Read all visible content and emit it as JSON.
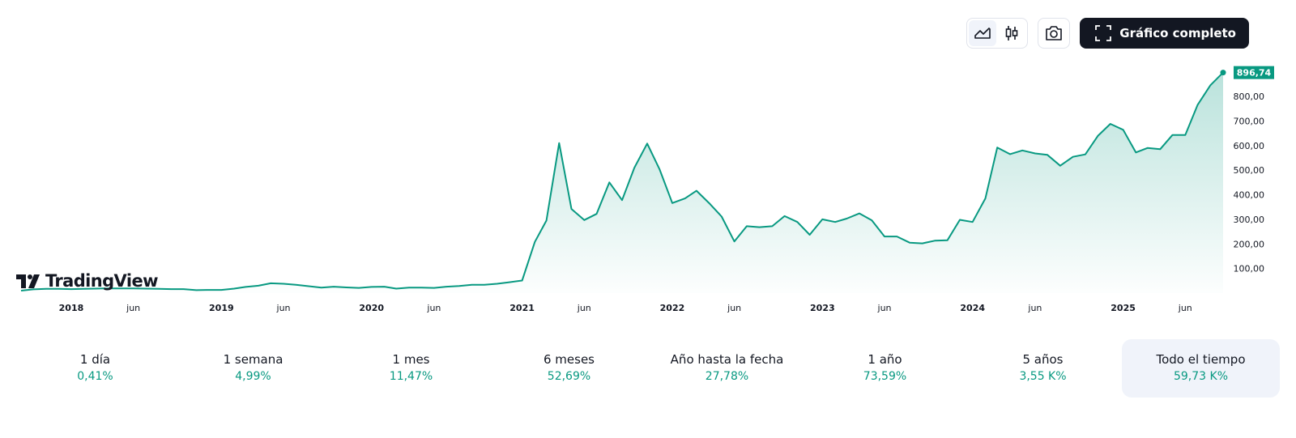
{
  "toolbar": {
    "chart_style_buttons": [
      {
        "icon": "area-chart-icon",
        "active": true
      },
      {
        "icon": "candlestick-chart-icon",
        "active": false
      }
    ],
    "snapshot_icon": "camera-icon",
    "fullscreen_icon": "expand-icon",
    "fullscreen_label": "Gráfico completo"
  },
  "logo": {
    "text": "TradingView"
  },
  "colors": {
    "line": "#089981",
    "accent": "#089981",
    "text": "#131722",
    "active_period_bg": "#f0f3fa"
  },
  "chart_data": {
    "type": "area",
    "x_tick_labels": [
      {
        "date": "2018-01-01",
        "label": "2018",
        "bold": true
      },
      {
        "date": "2018-06-01",
        "label": "jun",
        "bold": false
      },
      {
        "date": "2019-01-01",
        "label": "2019",
        "bold": true
      },
      {
        "date": "2019-06-01",
        "label": "jun",
        "bold": false
      },
      {
        "date": "2020-01-01",
        "label": "2020",
        "bold": true
      },
      {
        "date": "2020-06-01",
        "label": "jun",
        "bold": false
      },
      {
        "date": "2021-01-01",
        "label": "2021",
        "bold": true
      },
      {
        "date": "2021-06-01",
        "label": "jun",
        "bold": false
      },
      {
        "date": "2022-01-01",
        "label": "2022",
        "bold": true
      },
      {
        "date": "2022-06-01",
        "label": "jun",
        "bold": false
      },
      {
        "date": "2023-01-01",
        "label": "2023",
        "bold": true
      },
      {
        "date": "2023-06-01",
        "label": "jun",
        "bold": false
      },
      {
        "date": "2024-01-01",
        "label": "2024",
        "bold": true
      },
      {
        "date": "2024-06-01",
        "label": "jun",
        "bold": false
      },
      {
        "date": "2025-01-01",
        "label": "2025",
        "bold": true
      },
      {
        "date": "2025-06-01",
        "label": "jun",
        "bold": false
      }
    ],
    "y_tick_labels": [
      "100,00",
      "200,00",
      "300,00",
      "400,00",
      "500,00",
      "600,00",
      "700,00",
      "800,00"
    ],
    "y_ticks": [
      100,
      200,
      300,
      400,
      500,
      600,
      700,
      800
    ],
    "ylim": [
      0,
      912
    ],
    "xlim": [
      "2017-09-01",
      "2025-09-01"
    ],
    "last_value": 896.74,
    "last_value_label": "896,74",
    "series": [
      {
        "points": [
          [
            "2017-09-01",
            10
          ],
          [
            "2017-10-01",
            15
          ],
          [
            "2017-11-01",
            17
          ],
          [
            "2017-12-01",
            17
          ],
          [
            "2018-01-01",
            16
          ],
          [
            "2018-02-01",
            17
          ],
          [
            "2018-03-01",
            18
          ],
          [
            "2018-04-01",
            19
          ],
          [
            "2018-05-01",
            19
          ],
          [
            "2018-06-01",
            19
          ],
          [
            "2018-07-01",
            18
          ],
          [
            "2018-08-01",
            17
          ],
          [
            "2018-09-01",
            16
          ],
          [
            "2018-10-01",
            16
          ],
          [
            "2018-11-01",
            12
          ],
          [
            "2018-12-01",
            13
          ],
          [
            "2019-01-01",
            13
          ],
          [
            "2019-02-01",
            18
          ],
          [
            "2019-03-01",
            25
          ],
          [
            "2019-04-01",
            30
          ],
          [
            "2019-05-01",
            40
          ],
          [
            "2019-06-01",
            38
          ],
          [
            "2019-07-01",
            34
          ],
          [
            "2019-08-01",
            28
          ],
          [
            "2019-09-01",
            22
          ],
          [
            "2019-10-01",
            26
          ],
          [
            "2019-11-01",
            23
          ],
          [
            "2019-12-01",
            21
          ],
          [
            "2020-01-01",
            25
          ],
          [
            "2020-02-01",
            26
          ],
          [
            "2020-03-01",
            18
          ],
          [
            "2020-04-01",
            22
          ],
          [
            "2020-05-01",
            22
          ],
          [
            "2020-06-01",
            21
          ],
          [
            "2020-07-01",
            26
          ],
          [
            "2020-08-01",
            29
          ],
          [
            "2020-09-01",
            34
          ],
          [
            "2020-10-01",
            34
          ],
          [
            "2020-11-01",
            38
          ],
          [
            "2020-12-01",
            44
          ],
          [
            "2021-01-01",
            51
          ],
          [
            "2021-02-01",
            208
          ],
          [
            "2021-03-01",
            295
          ],
          [
            "2021-04-01",
            610
          ],
          [
            "2021-05-01",
            342
          ],
          [
            "2021-06-01",
            297
          ],
          [
            "2021-07-01",
            322
          ],
          [
            "2021-08-01",
            450
          ],
          [
            "2021-09-01",
            378
          ],
          [
            "2021-10-01",
            510
          ],
          [
            "2021-11-01",
            608
          ],
          [
            "2021-12-01",
            504
          ],
          [
            "2022-01-01",
            366
          ],
          [
            "2022-02-01",
            385
          ],
          [
            "2022-03-01",
            416
          ],
          [
            "2022-04-01",
            365
          ],
          [
            "2022-05-01",
            311
          ],
          [
            "2022-06-01",
            210
          ],
          [
            "2022-07-01",
            272
          ],
          [
            "2022-08-01",
            268
          ],
          [
            "2022-09-01",
            272
          ],
          [
            "2022-10-01",
            313
          ],
          [
            "2022-11-01",
            289
          ],
          [
            "2022-12-01",
            237
          ],
          [
            "2023-01-01",
            300
          ],
          [
            "2023-02-01",
            289
          ],
          [
            "2023-03-01",
            303
          ],
          [
            "2023-04-01",
            324
          ],
          [
            "2023-05-01",
            296
          ],
          [
            "2023-06-01",
            230
          ],
          [
            "2023-07-01",
            230
          ],
          [
            "2023-08-01",
            205
          ],
          [
            "2023-09-01",
            202
          ],
          [
            "2023-10-01",
            213
          ],
          [
            "2023-11-01",
            215
          ],
          [
            "2023-12-01",
            298
          ],
          [
            "2024-01-01",
            289
          ],
          [
            "2024-02-01",
            385
          ],
          [
            "2024-03-01",
            592
          ],
          [
            "2024-04-01",
            565
          ],
          [
            "2024-05-01",
            580
          ],
          [
            "2024-06-01",
            568
          ],
          [
            "2024-07-01",
            562
          ],
          [
            "2024-08-01",
            518
          ],
          [
            "2024-09-01",
            554
          ],
          [
            "2024-10-01",
            564
          ],
          [
            "2024-11-01",
            640
          ],
          [
            "2024-12-01",
            688
          ],
          [
            "2025-01-01",
            664
          ],
          [
            "2025-02-01",
            572
          ],
          [
            "2025-03-01",
            590
          ],
          [
            "2025-04-01",
            585
          ],
          [
            "2025-05-01",
            643
          ],
          [
            "2025-06-01",
            643
          ],
          [
            "2025-07-01",
            765
          ],
          [
            "2025-08-01",
            845
          ],
          [
            "2025-09-01",
            896.74
          ]
        ]
      }
    ]
  },
  "periods": [
    {
      "label": "1 día",
      "value": "0,41%",
      "active": false
    },
    {
      "label": "1 semana",
      "value": "4,99%",
      "active": false
    },
    {
      "label": "1 mes",
      "value": "11,47%",
      "active": false
    },
    {
      "label": "6 meses",
      "value": "52,69%",
      "active": false
    },
    {
      "label": "Año hasta la fecha",
      "value": "27,78%",
      "active": false
    },
    {
      "label": "1 año",
      "value": "73,59%",
      "active": false
    },
    {
      "label": "5 años",
      "value": "3,55 K%",
      "active": false
    },
    {
      "label": "Todo el tiempo",
      "value": "59,73 K%",
      "active": true
    }
  ]
}
